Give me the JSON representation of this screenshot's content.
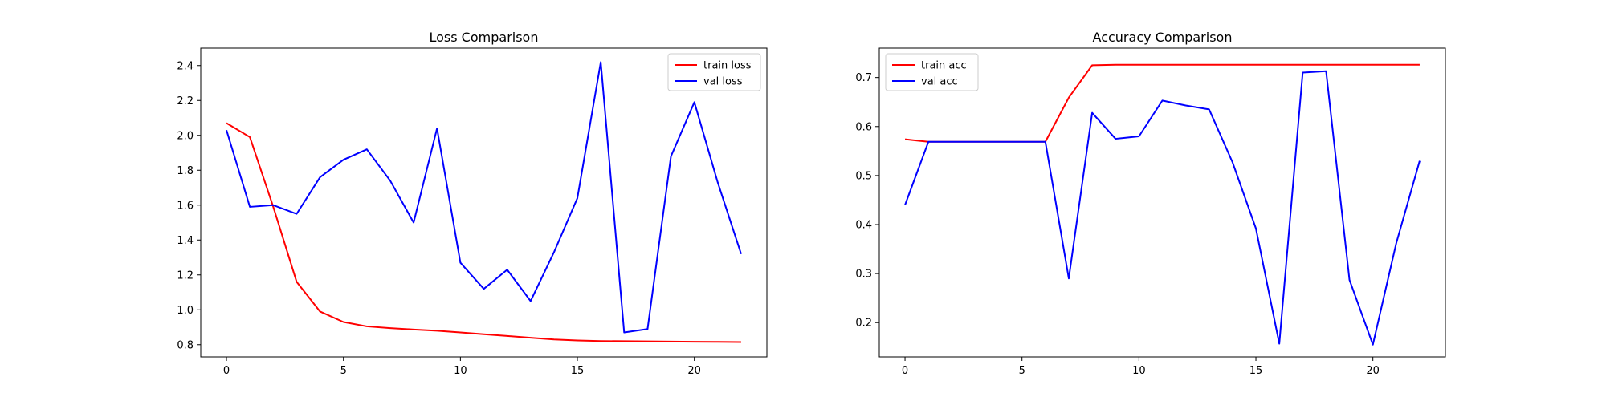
{
  "chart_data": [
    {
      "type": "line",
      "title": "Loss Comparison",
      "xlabel": "",
      "ylabel": "",
      "xlim": [
        -1.1,
        23.1
      ],
      "ylim": [
        0.73,
        2.5
      ],
      "xticks": [
        0,
        5,
        10,
        15,
        20
      ],
      "yticks": [
        0.8,
        1.0,
        1.2,
        1.4,
        1.6,
        1.8,
        2.0,
        2.2,
        2.4
      ],
      "ytick_labels": [
        "0.8",
        "1.0",
        "1.2",
        "1.4",
        "1.6",
        "1.8",
        "2.0",
        "2.2",
        "2.4"
      ],
      "grid": false,
      "legend_position": "top-right",
      "x": [
        0,
        1,
        2,
        3,
        4,
        5,
        6,
        7,
        8,
        9,
        10,
        11,
        12,
        13,
        14,
        15,
        16,
        17,
        18,
        19,
        20,
        21,
        22
      ],
      "series": [
        {
          "name": "train loss",
          "color": "#ff0000",
          "values": [
            2.07,
            1.99,
            1.59,
            1.16,
            0.99,
            0.93,
            0.905,
            0.895,
            0.887,
            0.88,
            0.87,
            0.86,
            0.85,
            0.84,
            0.83,
            0.824,
            0.821,
            0.82,
            0.819,
            0.818,
            0.817,
            0.816,
            0.815
          ]
        },
        {
          "name": "val loss",
          "color": "#0000ff",
          "values": [
            2.03,
            1.59,
            1.6,
            1.55,
            1.76,
            1.86,
            1.92,
            1.74,
            1.5,
            2.04,
            1.27,
            1.12,
            1.23,
            1.05,
            1.33,
            1.64,
            2.42,
            0.87,
            0.89,
            1.88,
            2.19,
            1.73,
            1.32
          ]
        }
      ]
    },
    {
      "type": "line",
      "title": "Accuracy Comparison",
      "xlabel": "",
      "ylabel": "",
      "xlim": [
        -1.1,
        23.1
      ],
      "ylim": [
        0.13,
        0.76
      ],
      "xticks": [
        0,
        5,
        10,
        15,
        20
      ],
      "yticks": [
        0.2,
        0.3,
        0.4,
        0.5,
        0.6,
        0.7
      ],
      "ytick_labels": [
        "0.2",
        "0.3",
        "0.4",
        "0.5",
        "0.6",
        "0.7"
      ],
      "grid": false,
      "legend_position": "top-left",
      "x": [
        0,
        1,
        2,
        3,
        4,
        5,
        6,
        7,
        8,
        9,
        10,
        11,
        12,
        13,
        14,
        15,
        16,
        17,
        18,
        19,
        20,
        21,
        22
      ],
      "series": [
        {
          "name": "train acc",
          "color": "#ff0000",
          "values": [
            0.574,
            0.569,
            0.569,
            0.569,
            0.569,
            0.569,
            0.569,
            0.659,
            0.725,
            0.726,
            0.726,
            0.726,
            0.726,
            0.726,
            0.726,
            0.726,
            0.726,
            0.726,
            0.726,
            0.726,
            0.726,
            0.726,
            0.726
          ]
        },
        {
          "name": "val acc",
          "color": "#0000ff",
          "values": [
            0.44,
            0.569,
            0.569,
            0.569,
            0.569,
            0.569,
            0.569,
            0.29,
            0.628,
            0.575,
            0.58,
            0.653,
            0.643,
            0.635,
            0.527,
            0.392,
            0.157,
            0.71,
            0.713,
            0.287,
            0.155,
            0.362,
            0.53
          ]
        }
      ]
    }
  ]
}
